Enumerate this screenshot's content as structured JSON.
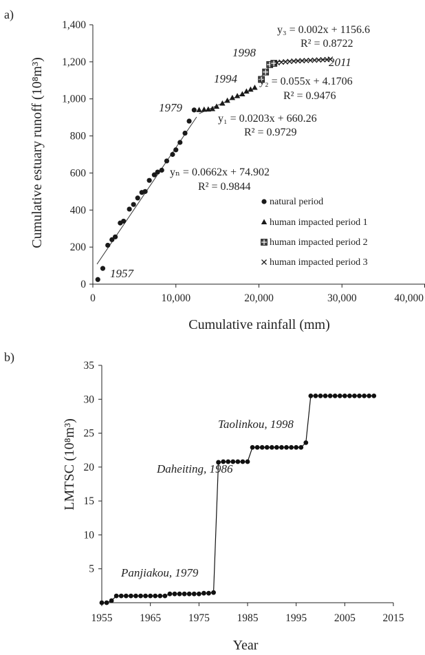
{
  "chart_data": [
    {
      "panel_label": "a)",
      "type": "scatter",
      "xlabel": "Cumulative rainfall (mm)",
      "ylabel": "Cumulative estuary runoff (10⁸m³)",
      "xlim": [
        0,
        40000
      ],
      "ylim": [
        0,
        1400
      ],
      "x_ticks": [
        0,
        10000,
        20000,
        30000,
        40000
      ],
      "x_tick_labels": [
        "0",
        "10,000",
        "20,000",
        "30,000",
        "40,000"
      ],
      "y_ticks": [
        0,
        200,
        400,
        600,
        800,
        1000,
        1200,
        1400
      ],
      "y_tick_labels": [
        "0",
        "200",
        "400",
        "600",
        "800",
        "1,000",
        "1,200",
        "1,400"
      ],
      "grid": false,
      "legend_position": "bottom-right",
      "series": [
        {
          "name": "natural period",
          "marker": "circle",
          "x": [
            600,
            1200,
            1800,
            2300,
            2700,
            3300,
            3700,
            4400,
            4900,
            5400,
            5900,
            6300,
            6800,
            7400,
            7800,
            8300,
            8900,
            9600,
            10000,
            10500,
            11100,
            11600,
            12200
          ],
          "y": [
            25,
            85,
            210,
            240,
            255,
            330,
            340,
            405,
            430,
            465,
            495,
            500,
            560,
            590,
            605,
            615,
            665,
            700,
            725,
            765,
            815,
            880,
            940
          ]
        },
        {
          "name": "human impacted period 1",
          "marker": "triangle",
          "x": [
            12800,
            13400,
            13900,
            14400,
            14900,
            15600,
            16200,
            16800,
            17400,
            18000,
            18500,
            19000,
            19500
          ],
          "y": [
            940,
            942,
            943,
            945,
            958,
            975,
            990,
            1005,
            1015,
            1025,
            1040,
            1050,
            1060
          ]
        },
        {
          "name": "human impacted period 2",
          "marker": "boxed-plus",
          "x": [
            20300,
            20800,
            21300,
            21800
          ],
          "y": [
            1105,
            1145,
            1185,
            1192
          ]
        },
        {
          "name": "human impacted period 3",
          "marker": "x",
          "x": [
            22200,
            22700,
            23200,
            23700,
            24200,
            24700,
            25200,
            25700,
            26200,
            26700,
            27200,
            27700,
            28200,
            28600
          ],
          "y": [
            1195,
            1198,
            1200,
            1202,
            1204,
            1205,
            1206,
            1207,
            1208,
            1209,
            1210,
            1211,
            1212,
            1214
          ]
        }
      ],
      "fits": [
        {
          "equation": "yₙ = 0.0662x + 74.902",
          "r2": "R² = 0.9844",
          "slope": 0.0662,
          "intercept": 74.902,
          "x_range": [
            500,
            12500
          ]
        },
        {
          "equation": "y₁ = 0.0203x + 660.26",
          "r2": "R² = 0.9729",
          "slope": 0.0203,
          "intercept": 660.26,
          "x_range": [
            12800,
            19500
          ]
        },
        {
          "equation": "y₂ = 0.055x + 4.1706",
          "r2": "R² = 0.9476",
          "slope": 0.055,
          "intercept": 4.1706,
          "x_range": [
            20300,
            21800
          ]
        },
        {
          "equation": "y₃ = 0.002x + 1156.6",
          "r2": "R² = 0.8722",
          "slope": 0.002,
          "intercept": 1156.6,
          "x_range": [
            22200,
            28600
          ]
        }
      ],
      "annotations": [
        {
          "text": "1957",
          "x": 600,
          "y": 25
        },
        {
          "text": "1979",
          "x": 12800,
          "y": 940
        },
        {
          "text": "1994",
          "x": 20300,
          "y": 1105
        },
        {
          "text": "1998",
          "x": 21800,
          "y": 1192
        },
        {
          "text": "2011",
          "x": 28600,
          "y": 1214
        }
      ]
    },
    {
      "panel_label": "b)",
      "type": "line",
      "xlabel": "Year",
      "ylabel": "LMTSC (10⁸m³)",
      "xlim": [
        1955,
        2015
      ],
      "ylim": [
        0,
        35
      ],
      "x_ticks": [
        1955,
        1965,
        1975,
        1985,
        1995,
        2005,
        2015
      ],
      "y_ticks": [
        5,
        10,
        15,
        20,
        25,
        30,
        35
      ],
      "grid": false,
      "series": [
        {
          "name": "",
          "x": [
            1955,
            1956,
            1957,
            1958,
            1959,
            1960,
            1961,
            1962,
            1963,
            1964,
            1965,
            1966,
            1967,
            1968,
            1969,
            1970,
            1971,
            1972,
            1973,
            1974,
            1975,
            1976,
            1977,
            1978,
            1979,
            1980,
            1981,
            1982,
            1983,
            1984,
            1985,
            1986,
            1987,
            1988,
            1989,
            1990,
            1991,
            1992,
            1993,
            1994,
            1995,
            1996,
            1997,
            1998,
            1999,
            2000,
            2001,
            2002,
            2003,
            2004,
            2005,
            2006,
            2007,
            2008,
            2009,
            2010,
            2011
          ],
          "values": [
            0,
            0,
            0.3,
            1,
            1,
            1,
            1,
            1,
            1,
            1,
            1,
            1,
            1,
            1,
            1.3,
            1.3,
            1.3,
            1.3,
            1.3,
            1.3,
            1.3,
            1.4,
            1.4,
            1.5,
            20.7,
            20.8,
            20.8,
            20.8,
            20.8,
            20.8,
            20.8,
            22.9,
            22.9,
            22.9,
            22.9,
            22.9,
            22.9,
            22.9,
            22.9,
            22.9,
            22.9,
            22.9,
            23.6,
            30.5,
            30.5,
            30.5,
            30.5,
            30.5,
            30.5,
            30.5,
            30.5,
            30.5,
            30.5,
            30.5,
            30.5,
            30.5,
            30.5
          ]
        }
      ],
      "annotations": [
        {
          "text": "Panjiakou, 1979"
        },
        {
          "text": "Daheiting, 1986"
        },
        {
          "text": "Taolinkou, 1998"
        }
      ]
    }
  ]
}
